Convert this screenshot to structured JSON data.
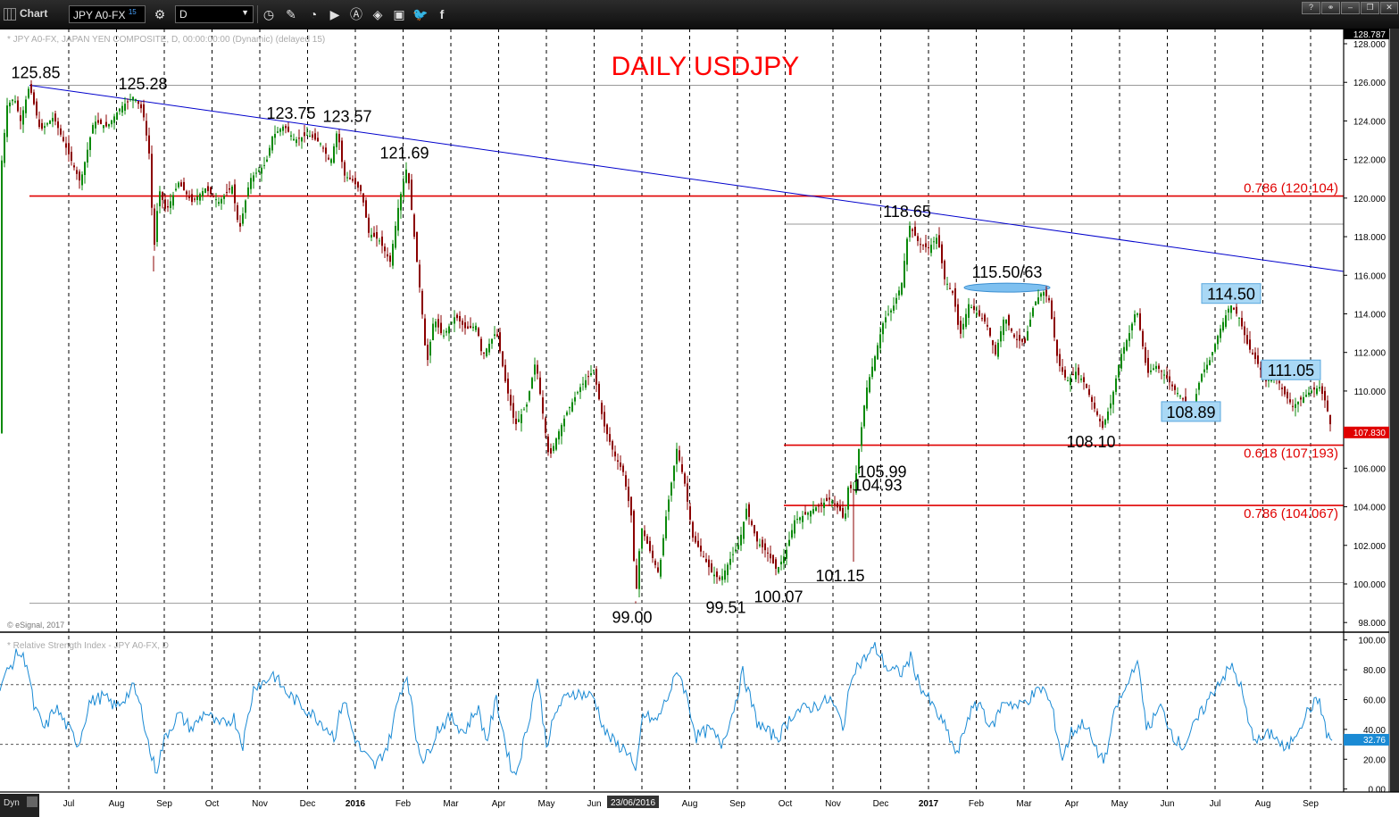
{
  "toolbar": {
    "app_title": "Chart",
    "symbol": "JPY A0-FX",
    "symbol_badge": "15",
    "interval": "D",
    "tool_icons": [
      "clock-icon",
      "pencil-icon",
      "chart-icon",
      "play-icon",
      "alert-icon",
      "tag-icon",
      "comment-icon",
      "twitter-icon",
      "facebook-icon"
    ]
  },
  "chart": {
    "description": "* JPY A0-FX, JAPAN YEN COMPOSITE, D, 00:00:00:00 (Dynamic) (delayed 15)",
    "title": "DAILY USDJPY",
    "copyright": "© eSignal, 2017",
    "top_price_label": "128.787",
    "last_price_label": "107.830",
    "colors": {
      "title": "#ff0000",
      "up": "#0b8a0b",
      "down": "#8b0000",
      "trend": "#0000cc",
      "fib": "#e00000",
      "rsi": "#1a8ad4"
    }
  },
  "chart_data": [
    {
      "type": "candlestick",
      "symbol": "USDJPY",
      "ylim": [
        97.5,
        128.787
      ],
      "y_ticks": [
        "98.000",
        "100.000",
        "102.000",
        "104.000",
        "106.000",
        "108.000",
        "110.000",
        "112.000",
        "114.000",
        "116.000",
        "118.000",
        "120.000",
        "122.000",
        "124.000",
        "126.000",
        "128.000"
      ],
      "x_ticks": [
        "Jul",
        "Aug",
        "Sep",
        "Oct",
        "Nov",
        "Dec",
        "2016",
        "Feb",
        "Mar",
        "Apr",
        "May",
        "Jun",
        "Jul",
        "Aug",
        "Sep",
        "Oct",
        "Nov",
        "Dec",
        "2017",
        "Feb",
        "Mar",
        "Apr",
        "May",
        "Jun",
        "Jul",
        "Aug",
        "Sep"
      ],
      "cursor_date": "23/06/2016",
      "price_path": [
        [
          0,
          121.0
        ],
        [
          8,
          124.8
        ],
        [
          16,
          125.2
        ],
        [
          23,
          124.0
        ],
        [
          33,
          125.85
        ],
        [
          45,
          123.5
        ],
        [
          60,
          124.2
        ],
        [
          75,
          122.5
        ],
        [
          90,
          120.8
        ],
        [
          105,
          124.0
        ],
        [
          120,
          123.7
        ],
        [
          135,
          124.7
        ],
        [
          150,
          125.28
        ],
        [
          160,
          124.5
        ],
        [
          168,
          122.0
        ],
        [
          172,
          117.0
        ],
        [
          178,
          120.5
        ],
        [
          186,
          119.3
        ],
        [
          200,
          120.8
        ],
        [
          215,
          119.8
        ],
        [
          230,
          120.5
        ],
        [
          245,
          119.8
        ],
        [
          260,
          120.6
        ],
        [
          268,
          118.3
        ],
        [
          280,
          121.0
        ],
        [
          298,
          121.8
        ],
        [
          305,
          123.2
        ],
        [
          318,
          123.75
        ],
        [
          330,
          123.0
        ],
        [
          345,
          123.3
        ],
        [
          360,
          122.8
        ],
        [
          370,
          121.8
        ],
        [
          378,
          123.57
        ],
        [
          385,
          121.2
        ],
        [
          395,
          120.9
        ],
        [
          405,
          120.3
        ],
        [
          413,
          118.2
        ],
        [
          425,
          117.8
        ],
        [
          437,
          116.7
        ],
        [
          447,
          119.8
        ],
        [
          456,
          121.69
        ],
        [
          464,
          118.0
        ],
        [
          472,
          114.5
        ],
        [
          478,
          111.3
        ],
        [
          486,
          113.8
        ],
        [
          496,
          112.8
        ],
        [
          510,
          113.9
        ],
        [
          522,
          113.2
        ],
        [
          534,
          113.4
        ],
        [
          540,
          111.8
        ],
        [
          556,
          113.1
        ],
        [
          566,
          110.5
        ],
        [
          577,
          108.2
        ],
        [
          590,
          109.3
        ],
        [
          600,
          111.6
        ],
        [
          606,
          109.5
        ],
        [
          615,
          106.5
        ],
        [
          625,
          107.8
        ],
        [
          635,
          108.9
        ],
        [
          650,
          110.2
        ],
        [
          665,
          111.1
        ],
        [
          676,
          108.3
        ],
        [
          688,
          106.7
        ],
        [
          698,
          105.8
        ],
        [
          708,
          103.3
        ],
        [
          712,
          99.1
        ],
        [
          718,
          103.0
        ],
        [
          728,
          101.7
        ],
        [
          738,
          100.5
        ],
        [
          746,
          103.5
        ],
        [
          758,
          107.0
        ],
        [
          767,
          105.2
        ],
        [
          776,
          102.4
        ],
        [
          786,
          101.6
        ],
        [
          797,
          100.6
        ],
        [
          807,
          100.2
        ],
        [
          818,
          101.3
        ],
        [
          828,
          102.1
        ],
        [
          836,
          103.9
        ],
        [
          848,
          102.2
        ],
        [
          860,
          101.6
        ],
        [
          870,
          100.7
        ],
        [
          880,
          101.6
        ],
        [
          890,
          103.3
        ],
        [
          902,
          103.6
        ],
        [
          915,
          104.0
        ],
        [
          930,
          104.4
        ],
        [
          941,
          103.8
        ],
        [
          946,
          103.2
        ],
        [
          950,
          105.0
        ],
        [
          957,
          104.9
        ],
        [
          962,
          107.0
        ],
        [
          970,
          110.0
        ],
        [
          980,
          111.8
        ],
        [
          990,
          113.7
        ],
        [
          1000,
          114.3
        ],
        [
          1010,
          115.6
        ],
        [
          1018,
          118.65
        ],
        [
          1030,
          117.6
        ],
        [
          1040,
          117.4
        ],
        [
          1050,
          118.0
        ],
        [
          1058,
          115.8
        ],
        [
          1068,
          115.0
        ],
        [
          1075,
          112.8
        ],
        [
          1085,
          114.5
        ],
        [
          1095,
          114.0
        ],
        [
          1105,
          113.5
        ],
        [
          1115,
          111.9
        ],
        [
          1125,
          113.9
        ],
        [
          1137,
          112.7
        ],
        [
          1148,
          112.5
        ],
        [
          1158,
          114.5
        ],
        [
          1168,
          115.2
        ],
        [
          1175,
          114.7
        ],
        [
          1185,
          111.5
        ],
        [
          1195,
          110.5
        ],
        [
          1205,
          111.0
        ],
        [
          1215,
          110.4
        ],
        [
          1225,
          109.2
        ],
        [
          1235,
          108.1
        ],
        [
          1245,
          109.5
        ],
        [
          1255,
          111.8
        ],
        [
          1265,
          113.0
        ],
        [
          1273,
          114.3
        ],
        [
          1285,
          110.9
        ],
        [
          1295,
          111.3
        ],
        [
          1305,
          110.8
        ],
        [
          1315,
          110.1
        ],
        [
          1325,
          109.6
        ],
        [
          1335,
          108.9
        ],
        [
          1345,
          110.8
        ],
        [
          1355,
          111.6
        ],
        [
          1365,
          113.0
        ],
        [
          1378,
          114.5
        ],
        [
          1388,
          113.8
        ],
        [
          1398,
          112.3
        ],
        [
          1408,
          111.5
        ],
        [
          1418,
          110.5
        ],
        [
          1428,
          110.9
        ],
        [
          1438,
          109.9
        ],
        [
          1448,
          109.2
        ],
        [
          1458,
          109.6
        ],
        [
          1468,
          110.0
        ],
        [
          1478,
          110.2
        ],
        [
          1485,
          109.4
        ],
        [
          1492,
          107.83
        ]
      ],
      "annotations": [
        {
          "text": "125.85",
          "x": 40,
          "y": 125.85
        },
        {
          "text": "125.28",
          "x": 160,
          "y": 125.28
        },
        {
          "text": "123.75",
          "x": 326,
          "y": 123.75
        },
        {
          "text": "123.57",
          "x": 389,
          "y": 123.57
        },
        {
          "text": "121.69",
          "x": 453,
          "y": 121.69
        },
        {
          "text": "99.00",
          "x": 708,
          "y": 99.0
        },
        {
          "text": "99.51",
          "x": 813,
          "y": 99.51
        },
        {
          "text": "100.07",
          "x": 872,
          "y": 100.07
        },
        {
          "text": "101.15",
          "x": 941,
          "y": 101.15
        },
        {
          "text": "104.93",
          "x": 983,
          "y": 104.93
        },
        {
          "text": "105.99",
          "x": 988,
          "y": 105.99
        },
        {
          "text": "118.65",
          "x": 1016,
          "y": 118.65
        },
        {
          "text": "115.50/63",
          "x": 1128,
          "y": 115.5
        },
        {
          "text": "108.10",
          "x": 1222,
          "y": 108.1
        },
        {
          "text": "108.89",
          "x": 1334,
          "y": 108.89,
          "boxed": true
        },
        {
          "text": "114.50",
          "x": 1379,
          "y": 114.5,
          "boxed": true
        },
        {
          "text": "111.05",
          "x": 1446,
          "y": 111.05,
          "boxed": true
        }
      ],
      "fib_lines": [
        {
          "label": "0.786 (120.104)",
          "value": 120.104
        },
        {
          "label": "0.618 (107.193)",
          "value": 107.193
        },
        {
          "label": "0.786 (104.067)",
          "value": 104.067
        }
      ],
      "grey_lines": [
        125.85,
        118.65,
        100.07,
        99.0
      ],
      "trendline": [
        [
          33,
          125.85
        ],
        [
          1505,
          116.2
        ]
      ]
    },
    {
      "type": "line",
      "title": "* Relative Strength Index - JPY A0-FX, D",
      "ylim": [
        -2,
        104
      ],
      "y_ticks": [
        "0.00",
        "20.00",
        "40.00",
        "60.00",
        "80.00",
        "100.00"
      ],
      "levels": [
        70,
        30
      ],
      "last_value_label": "32.76",
      "rsi_path": [
        [
          0,
          70
        ],
        [
          10,
          80
        ],
        [
          20,
          92
        ],
        [
          30,
          85
        ],
        [
          38,
          55
        ],
        [
          50,
          40
        ],
        [
          62,
          55
        ],
        [
          75,
          42
        ],
        [
          88,
          30
        ],
        [
          100,
          58
        ],
        [
          115,
          62
        ],
        [
          130,
          55
        ],
        [
          150,
          68
        ],
        [
          160,
          50
        ],
        [
          168,
          25
        ],
        [
          175,
          12
        ],
        [
          185,
          35
        ],
        [
          200,
          50
        ],
        [
          215,
          40
        ],
        [
          230,
          52
        ],
        [
          245,
          42
        ],
        [
          262,
          48
        ],
        [
          272,
          30
        ],
        [
          285,
          70
        ],
        [
          298,
          72
        ],
        [
          305,
          78
        ],
        [
          320,
          65
        ],
        [
          340,
          55
        ],
        [
          360,
          45
        ],
        [
          375,
          35
        ],
        [
          385,
          62
        ],
        [
          395,
          38
        ],
        [
          405,
          25
        ],
        [
          420,
          15
        ],
        [
          435,
          30
        ],
        [
          448,
          65
        ],
        [
          456,
          77
        ],
        [
          466,
          35
        ],
        [
          475,
          18
        ],
        [
          490,
          40
        ],
        [
          505,
          48
        ],
        [
          520,
          38
        ],
        [
          535,
          55
        ],
        [
          545,
          32
        ],
        [
          556,
          60
        ],
        [
          570,
          20
        ],
        [
          577,
          8
        ],
        [
          590,
          40
        ],
        [
          602,
          75
        ],
        [
          612,
          30
        ],
        [
          625,
          55
        ],
        [
          640,
          65
        ],
        [
          665,
          62
        ],
        [
          678,
          38
        ],
        [
          690,
          30
        ],
        [
          705,
          25
        ],
        [
          712,
          8
        ],
        [
          720,
          50
        ],
        [
          735,
          45
        ],
        [
          748,
          62
        ],
        [
          760,
          80
        ],
        [
          770,
          60
        ],
        [
          780,
          35
        ],
        [
          795,
          40
        ],
        [
          808,
          30
        ],
        [
          820,
          50
        ],
        [
          832,
          78
        ],
        [
          848,
          45
        ],
        [
          860,
          38
        ],
        [
          872,
          35
        ],
        [
          890,
          52
        ],
        [
          910,
          55
        ],
        [
          930,
          60
        ],
        [
          945,
          42
        ],
        [
          955,
          80
        ],
        [
          965,
          85
        ],
        [
          980,
          95
        ],
        [
          995,
          80
        ],
        [
          1010,
          78
        ],
        [
          1020,
          88
        ],
        [
          1030,
          70
        ],
        [
          1045,
          55
        ],
        [
          1060,
          40
        ],
        [
          1072,
          22
        ],
        [
          1085,
          50
        ],
        [
          1098,
          58
        ],
        [
          1110,
          40
        ],
        [
          1125,
          60
        ],
        [
          1140,
          55
        ],
        [
          1155,
          62
        ],
        [
          1168,
          68
        ],
        [
          1178,
          55
        ],
        [
          1190,
          20
        ],
        [
          1200,
          38
        ],
        [
          1215,
          45
        ],
        [
          1228,
          25
        ],
        [
          1238,
          20
        ],
        [
          1250,
          55
        ],
        [
          1262,
          68
        ],
        [
          1273,
          88
        ],
        [
          1285,
          40
        ],
        [
          1300,
          55
        ],
        [
          1315,
          35
        ],
        [
          1325,
          28
        ],
        [
          1340,
          45
        ],
        [
          1352,
          58
        ],
        [
          1365,
          72
        ],
        [
          1380,
          82
        ],
        [
          1390,
          68
        ],
        [
          1400,
          40
        ],
        [
          1410,
          32
        ],
        [
          1425,
          38
        ],
        [
          1440,
          25
        ],
        [
          1455,
          42
        ],
        [
          1468,
          55
        ],
        [
          1478,
          60
        ],
        [
          1485,
          38
        ],
        [
          1492,
          32.76
        ]
      ]
    }
  ]
}
